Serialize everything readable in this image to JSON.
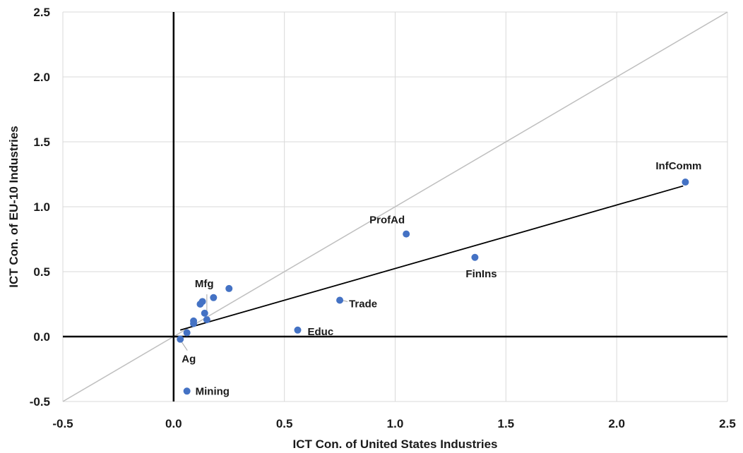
{
  "chart_data": {
    "type": "scatter",
    "title": "",
    "xlabel": "ICT Con. of United States Industries",
    "ylabel": "ICT Con. of  EU-10 Industries",
    "xlim": [
      -0.5,
      2.5
    ],
    "ylim": [
      -0.5,
      2.5
    ],
    "x_ticks": [
      "-0.5",
      "0.0",
      "0.5",
      "1.0",
      "1.5",
      "2.0",
      "2.5"
    ],
    "y_ticks": [
      "-0.5",
      "0.0",
      "0.5",
      "1.0",
      "1.5",
      "2.0",
      "2.5"
    ],
    "grid": true,
    "legend": "none",
    "colors": {
      "points": "#4472c4",
      "trendline": "#000000",
      "reference_line": "#bfbfbf",
      "grid": "#d9d9d9"
    },
    "reference_line": {
      "from": [
        -0.5,
        -0.5
      ],
      "to": [
        2.5,
        2.5
      ]
    },
    "trendline": {
      "from": [
        0.03,
        0.05
      ],
      "to": [
        2.3,
        1.16
      ]
    },
    "points": [
      {
        "label": "InfComm",
        "x": 2.31,
        "y": 1.19
      },
      {
        "label": "ProfAd",
        "x": 1.05,
        "y": 0.79
      },
      {
        "label": "FinIns",
        "x": 1.36,
        "y": 0.61
      },
      {
        "label": "Trade",
        "x": 0.75,
        "y": 0.28
      },
      {
        "label": "Educ",
        "x": 0.56,
        "y": 0.05
      },
      {
        "label": "Mfg",
        "x": 0.15,
        "y": 0.13
      },
      {
        "label": "Ag",
        "x": 0.03,
        "y": -0.02
      },
      {
        "label": "Mining",
        "x": 0.06,
        "y": -0.42
      },
      {
        "label": "",
        "x": 0.25,
        "y": 0.37
      },
      {
        "label": "",
        "x": 0.18,
        "y": 0.3
      },
      {
        "label": "",
        "x": 0.13,
        "y": 0.27
      },
      {
        "label": "",
        "x": 0.12,
        "y": 0.25
      },
      {
        "label": "",
        "x": 0.14,
        "y": 0.18
      },
      {
        "label": "",
        "x": 0.09,
        "y": 0.12
      },
      {
        "label": "",
        "x": 0.09,
        "y": 0.1
      },
      {
        "label": "",
        "x": 0.06,
        "y": 0.03
      }
    ]
  }
}
